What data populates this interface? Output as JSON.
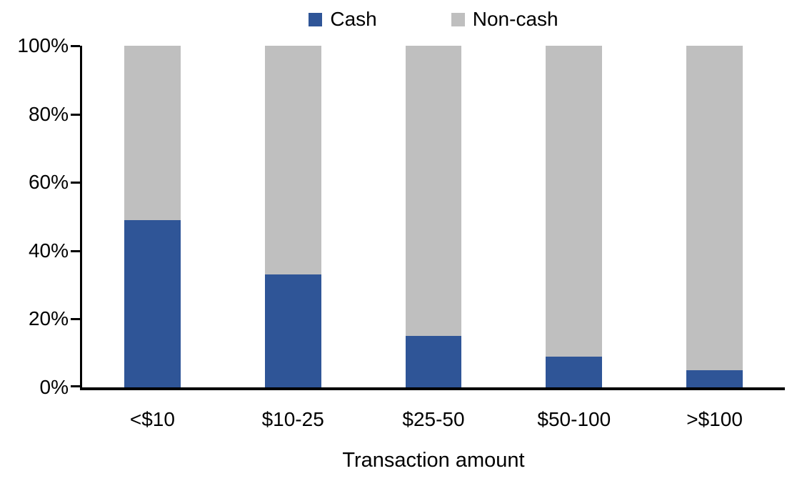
{
  "chart_data": {
    "type": "bar",
    "stacked": true,
    "title": "",
    "xlabel": "Transaction amount",
    "ylabel": "",
    "categories": [
      "<$10",
      "$10-25",
      "$25-50",
      "$50-100",
      ">$100"
    ],
    "series": [
      {
        "name": "Cash",
        "color": "#2F5597",
        "values": [
          49,
          33,
          15,
          9,
          5
        ]
      },
      {
        "name": "Non-cash",
        "color": "#BFBFBF",
        "values": [
          51,
          67,
          85,
          91,
          95
        ]
      }
    ],
    "ylim": [
      0,
      100
    ],
    "yticks": [
      "0%",
      "20%",
      "40%",
      "60%",
      "80%",
      "100%"
    ],
    "grid": false,
    "legend_position": "top-center",
    "background_color": "#FFFFFF",
    "axis_color": "#000000"
  }
}
